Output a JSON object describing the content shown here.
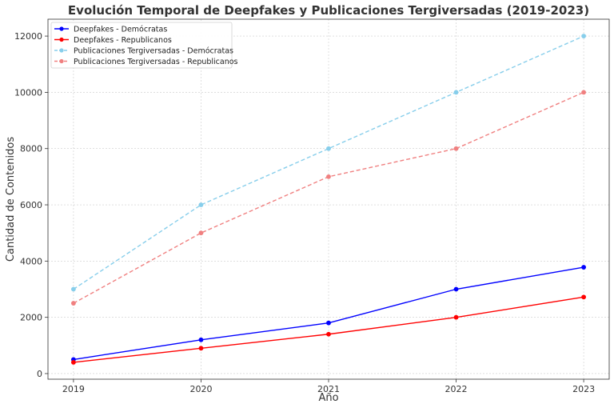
{
  "chart_data": {
    "type": "line",
    "title": "Evolución Temporal de Deepfakes y Publicaciones Tergiversadas (2019-2023)",
    "xlabel": "Año",
    "ylabel": "Cantidad de Contenidos",
    "x": [
      "2019",
      "2020",
      "2021",
      "2022",
      "2023"
    ],
    "xlim": [
      2018.8,
      2023.2
    ],
    "ylim": [
      -200,
      12600
    ],
    "yticks": [
      0,
      2000,
      4000,
      6000,
      8000,
      10000,
      12000
    ],
    "grid": true,
    "legend_position": "top-left",
    "series": [
      {
        "name": "Deepfakes - Demócratas",
        "values": [
          500,
          1200,
          1800,
          3000,
          3780
        ],
        "color": "#0000ff",
        "style": "solid"
      },
      {
        "name": "Deepfakes - Republicanos",
        "values": [
          400,
          900,
          1400,
          2000,
          2720
        ],
        "color": "#ff0000",
        "style": "solid"
      },
      {
        "name": "Publicaciones Tergiversadas - Demócratas",
        "values": [
          3000,
          6000,
          8000,
          10000,
          12000
        ],
        "color": "#87ceeb",
        "style": "dashed"
      },
      {
        "name": "Publicaciones Tergiversadas - Republicanos",
        "values": [
          2500,
          5000,
          7000,
          8000,
          10000
        ],
        "color": "#f08080",
        "style": "dashed"
      }
    ]
  }
}
